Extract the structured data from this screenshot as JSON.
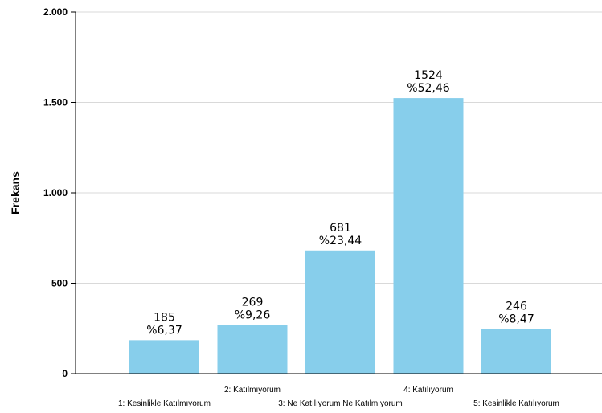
{
  "chart_data": {
    "type": "bar",
    "ylabel": "Frekans",
    "xlabel": "",
    "ylim": [
      0,
      2000
    ],
    "yticks": [
      0,
      500,
      1000,
      1500,
      2000
    ],
    "ytick_labels": [
      "0",
      "500",
      "1.000",
      "1.500",
      "2.000"
    ],
    "grid": true,
    "bar_color": "#87CEEB",
    "categories": [
      "1: Kesinlikle Katılmıyorum",
      "2: Katılmıyorum",
      "3: Ne Katılıyorum Ne Katılmıyorum",
      "4: Katılıyorum",
      "5: Kesinlikle Katılıyorum"
    ],
    "values": [
      185,
      269,
      681,
      1524,
      246
    ],
    "value_labels": [
      "185",
      "269",
      "681",
      "1524",
      "246"
    ],
    "percent_labels": [
      "%6,37",
      "%9,26",
      "%23,44",
      "%52,46",
      "%8,47"
    ]
  }
}
